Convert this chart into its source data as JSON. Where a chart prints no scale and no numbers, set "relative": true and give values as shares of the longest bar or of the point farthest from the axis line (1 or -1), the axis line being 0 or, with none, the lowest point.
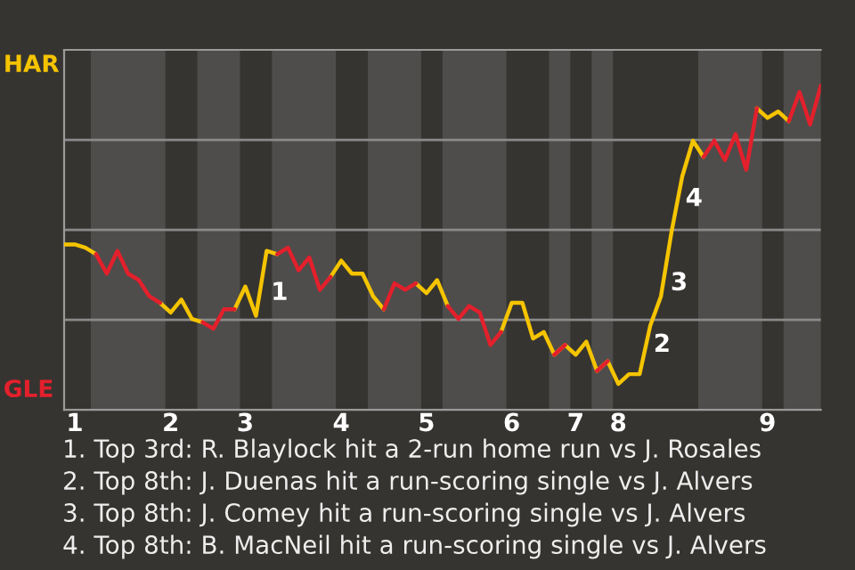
{
  "chart_data": {
    "type": "line",
    "relative": true,
    "grid": "y",
    "categories": [
      null,
      "1",
      null,
      null,
      null,
      null,
      null,
      null,
      null,
      null,
      "2",
      null,
      null,
      null,
      null,
      null,
      null,
      "3",
      null,
      null,
      null,
      null,
      null,
      null,
      null,
      null,
      "4",
      null,
      null,
      null,
      null,
      null,
      null,
      null,
      "5",
      null,
      null,
      null,
      null,
      null,
      null,
      null,
      "6",
      null,
      null,
      null,
      null,
      null,
      "7",
      null,
      null,
      null,
      "8",
      null,
      null,
      null,
      null,
      null,
      null,
      null,
      null,
      null,
      null,
      null,
      null,
      null,
      "9",
      null,
      null,
      null,
      null,
      null
    ],
    "series": [
      {
        "name": "HAR",
        "color": "#f5c400",
        "values": [
          0.51,
          0.51,
          0.5,
          0.48,
          null,
          null,
          null,
          null,
          null,
          0.33,
          0.3,
          0.34,
          0.28,
          0.27,
          null,
          null,
          0.31,
          0.38,
          0.29,
          0.49,
          0.48,
          null,
          null,
          null,
          null,
          0.41,
          0.46,
          0.42,
          0.42,
          0.35,
          0.31,
          null,
          null,
          0.39,
          0.36,
          0.4,
          0.32,
          null,
          null,
          null,
          null,
          0.24,
          0.33,
          0.33,
          0.22,
          0.24,
          0.17,
          0.2,
          0.17,
          0.21,
          0.12,
          0.15,
          0.08,
          0.11,
          0.11,
          0.26,
          0.35,
          0.55,
          0.72,
          0.83,
          0.78,
          null,
          null,
          null,
          null,
          0.93,
          0.9,
          0.92,
          0.89,
          null,
          null,
          null
        ]
      },
      {
        "name": "GLE",
        "color": "#e3202c",
        "values": [
          null,
          null,
          null,
          0.48,
          0.42,
          0.49,
          0.42,
          0.4,
          0.35,
          0.33,
          null,
          null,
          null,
          0.27,
          0.25,
          0.31,
          0.31,
          null,
          null,
          null,
          0.48,
          0.5,
          0.43,
          0.47,
          0.37,
          0.41,
          null,
          null,
          null,
          null,
          0.31,
          0.39,
          0.37,
          0.39,
          null,
          null,
          0.32,
          0.28,
          0.32,
          0.3,
          0.2,
          0.24,
          null,
          null,
          null,
          null,
          0.17,
          0.2,
          null,
          null,
          0.12,
          0.15,
          null,
          null,
          null,
          null,
          null,
          null,
          null,
          null,
          0.78,
          0.83,
          0.77,
          0.85,
          0.74,
          0.93,
          null,
          null,
          0.89,
          0.98,
          0.88,
          1.0
        ]
      }
    ],
    "annotations": [
      "1",
      "2",
      "3",
      "4",
      "1. Top 3rd: R. Blaylock hit a 2-run home run vs J. Rosales",
      "2. Top 8th: J. Duenas hit a run-scoring single vs J. Alvers",
      "3. Top 8th: J. Comey hit a run-scoring single vs J. Alvers",
      "4. Top 8th: B. MacNeil hit a run-scoring single vs J. Alvers"
    ]
  }
}
